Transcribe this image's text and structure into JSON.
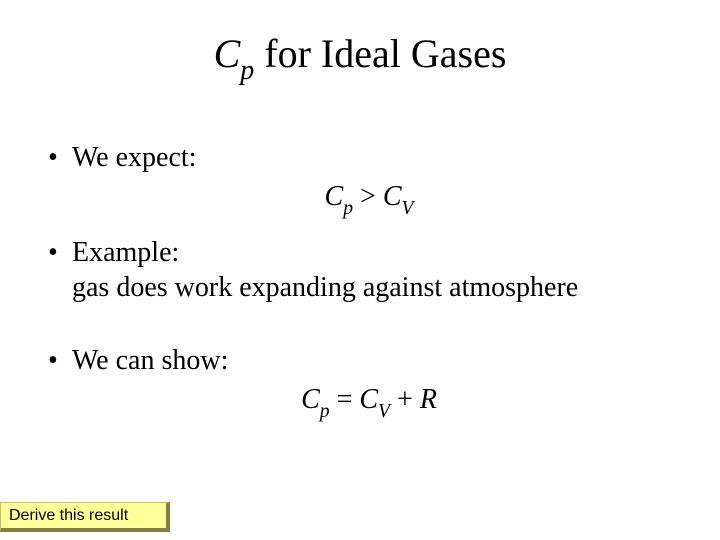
{
  "title": {
    "C": "C",
    "p": "p",
    "rest": " for Ideal Gases"
  },
  "bullets": {
    "b1": "We expect:",
    "b2a": "Example:",
    "b2b": "gas does work expanding against atmosphere",
    "b3": "We can show:"
  },
  "eq1": {
    "C1": "C",
    "p": "p",
    "gt": " > ",
    "C2": "C",
    "V": "V"
  },
  "eq2": {
    "C1": "C",
    "p": "p",
    "eq": " = ",
    "C2": "C",
    "V": "V",
    "plus": " + ",
    "R": "R"
  },
  "button": {
    "label": "Derive this result"
  },
  "bullet_char": "•"
}
